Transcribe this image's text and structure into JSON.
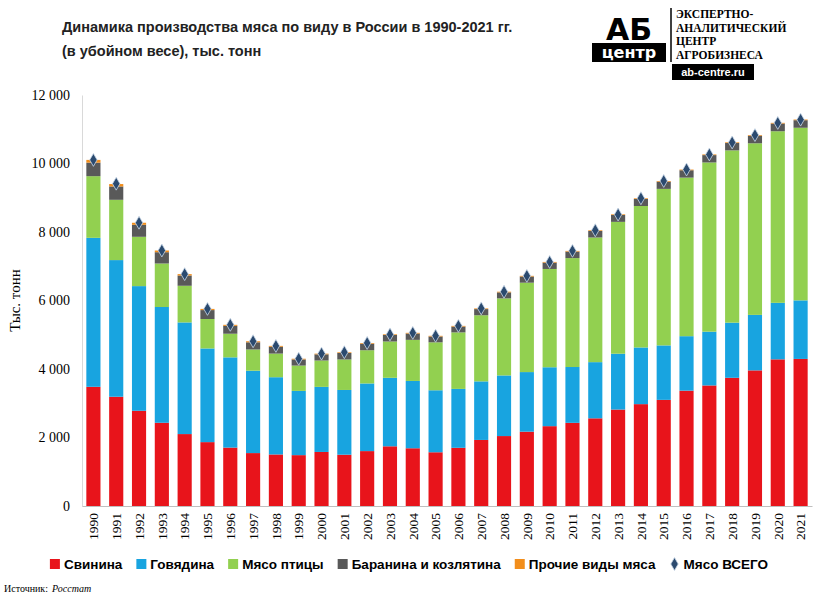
{
  "chart_data": {
    "type": "bar",
    "stacked": true,
    "title": "Динамика производства  мяса по виду в России в 1990-2021 гг.",
    "subtitle": "(в убойном весе), тыс. тонн",
    "y_label": "Тыс. тонн",
    "source_label": "Источник:",
    "source": "Росстат",
    "annotations": [
      "АБ",
      "центр",
      "ЭКСПЕРТНО-",
      "АНАЛИТИЧЕСКИЙ",
      "ЦЕНТР",
      "АГРОБИЗНЕСА",
      "ab-centre.ru"
    ],
    "legend": "bottom",
    "grid": false,
    "categories": [
      "1990",
      "1991",
      "1992",
      "1993",
      "1994",
      "1995",
      "1996",
      "1997",
      "1998",
      "1999",
      "2000",
      "2001",
      "2002",
      "2003",
      "2004",
      "2005",
      "2006",
      "2007",
      "2008",
      "2009",
      "2010",
      "2011",
      "2012",
      "2013",
      "2014",
      "2015",
      "2016",
      "2017",
      "2018",
      "2019",
      "2020",
      "2021"
    ],
    "ylim": [
      0,
      12000
    ],
    "yticks": [
      0,
      {
        "value": 2000,
        "label": "2 000"
      },
      {
        "value": 4000,
        "label": "4 000"
      },
      {
        "value": 6000,
        "label": "6 000"
      },
      {
        "value": 8000,
        "label": "8 000"
      },
      {
        "value": 10000,
        "label": "10 000"
      },
      {
        "value": 12000,
        "label": "12 000"
      }
    ],
    "series": [
      {
        "name": "Свинина",
        "type": "bar",
        "color": "#e8141b",
        "values": [
          3480,
          3190,
          2780,
          2430,
          2100,
          1865,
          1705,
          1545,
          1505,
          1485,
          1578,
          1498,
          1603,
          1743,
          1686,
          1569,
          1699,
          1929,
          2042,
          2170,
          2331,
          2428,
          2560,
          2816,
          2974,
          3099,
          3368,
          3520,
          3743,
          3960,
          4282,
          4294
        ]
      },
      {
        "name": "Говядина",
        "type": "bar",
        "color": "#18a4e0",
        "values": [
          4350,
          3990,
          3640,
          3380,
          3260,
          2735,
          2635,
          2405,
          2255,
          1875,
          1900,
          1890,
          1975,
          2000,
          1965,
          1810,
          1720,
          1710,
          1770,
          1740,
          1720,
          1630,
          1640,
          1630,
          1655,
          1590,
          1590,
          1570,
          1610,
          1620,
          1650,
          1710
        ]
      },
      {
        "name": "Мясо птицы",
        "type": "bar",
        "color": "#92d050",
        "values": [
          1800,
          1760,
          1440,
          1270,
          1070,
          860,
          690,
          620,
          690,
          740,
          770,
          890,
          970,
          1060,
          1200,
          1400,
          1650,
          1930,
          2250,
          2610,
          2870,
          3180,
          3640,
          3850,
          4130,
          4570,
          4630,
          4940,
          5030,
          5010,
          5010,
          5040
        ]
      },
      {
        "name": "Баранина и козлятина",
        "type": "bar",
        "color": "#595959",
        "values": [
          395,
          390,
          350,
          330,
          300,
          260,
          230,
          210,
          200,
          180,
          180,
          190,
          190,
          190,
          185,
          170,
          170,
          180,
          175,
          180,
          185,
          190,
          190,
          200,
          205,
          210,
          215,
          215,
          215,
          220,
          225,
          220
        ]
      },
      {
        "name": "Прочие виды мяса",
        "type": "bar",
        "color": "#f28e1c",
        "values": [
          80,
          70,
          60,
          50,
          40,
          35,
          30,
          30,
          25,
          20,
          20,
          20,
          20,
          20,
          20,
          20,
          20,
          20,
          20,
          20,
          20,
          20,
          20,
          20,
          20,
          20,
          20,
          20,
          20,
          20,
          20,
          20
        ]
      },
      {
        "name": "Мясо ВСЕГО",
        "type": "scatter",
        "marker": "diamond",
        "color": "#2b4a6f",
        "values": [
          10105,
          9410,
          8270,
          7460,
          6770,
          5755,
          5290,
          4810,
          4675,
          4300,
          4450,
          4490,
          4760,
          5010,
          5055,
          4970,
          5260,
          5770,
          6255,
          6720,
          7125,
          7450,
          8050,
          8510,
          8985,
          9490,
          9825,
          10265,
          10615,
          10830,
          11185,
          11280
        ]
      }
    ]
  }
}
